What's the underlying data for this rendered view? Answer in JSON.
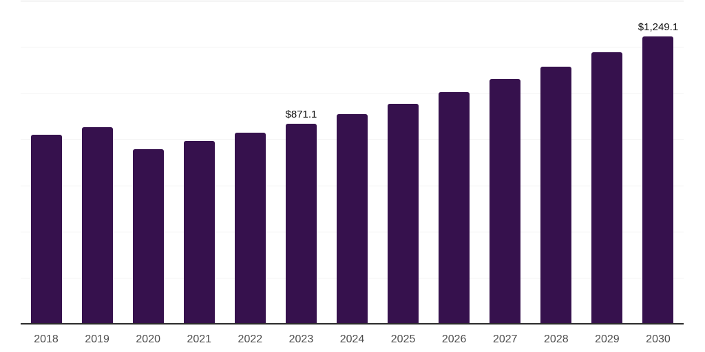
{
  "chart_data": {
    "type": "bar",
    "title": "",
    "xlabel": "",
    "ylabel": "",
    "categories": [
      "2018",
      "2019",
      "2020",
      "2021",
      "2022",
      "2023",
      "2024",
      "2025",
      "2026",
      "2027",
      "2028",
      "2029",
      "2030"
    ],
    "values": [
      822,
      856,
      760,
      796,
      832,
      871.1,
      913,
      957,
      1008,
      1062,
      1118,
      1181,
      1249.1
    ],
    "data_labels": {
      "2023": "$871.1",
      "2030": "$1,249.1"
    },
    "ylim": [
      0,
      1400
    ],
    "gridline_values": [
      200,
      400,
      600,
      800,
      1000,
      1200
    ],
    "top_boundary_value": 1400,
    "grid": "horizontal",
    "legend": "none",
    "y_axis_ticks_visible": false,
    "colors": {
      "bar": "#36114d",
      "gridline": "#f2f2f2",
      "top_border": "#dbdbdb",
      "axis": "#2b2b2b",
      "tick_label": "#4d4d4d",
      "value_label": "#111111",
      "background": "#ffffff"
    }
  }
}
